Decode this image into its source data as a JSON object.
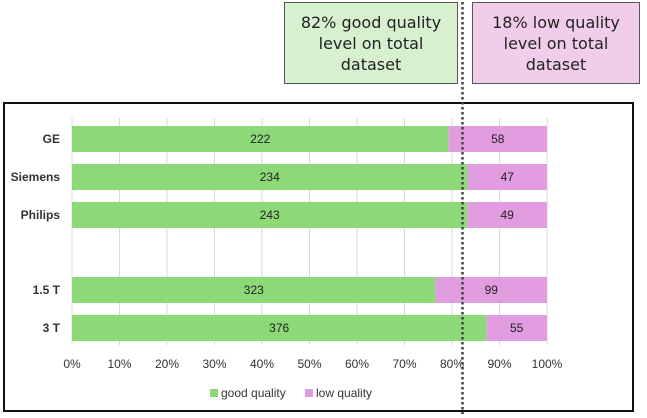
{
  "callouts": {
    "good": "82% good quality level on total dataset",
    "low": "18% low quality level on total dataset"
  },
  "colors": {
    "good": "#8dd977",
    "low": "#e29de0",
    "grid": "#d9d9d9",
    "reference_line": "#444444"
  },
  "chart_data": {
    "type": "bar",
    "orientation": "horizontal",
    "stacked": "percent",
    "categories": [
      "GE",
      "Siemens",
      "Philips",
      "",
      "1.5 T",
      "3 T"
    ],
    "series": [
      {
        "name": "good quality",
        "values": [
          222,
          234,
          243,
          null,
          323,
          376
        ]
      },
      {
        "name": "low quality",
        "values": [
          58,
          47,
          49,
          null,
          99,
          55
        ]
      }
    ],
    "x_ticks": [
      "0%",
      "10%",
      "20%",
      "30%",
      "40%",
      "50%",
      "60%",
      "70%",
      "80%",
      "90%",
      "100%"
    ],
    "xlim": [
      0,
      100
    ],
    "reference_line": 82,
    "grid": true,
    "legend": "bottom"
  }
}
